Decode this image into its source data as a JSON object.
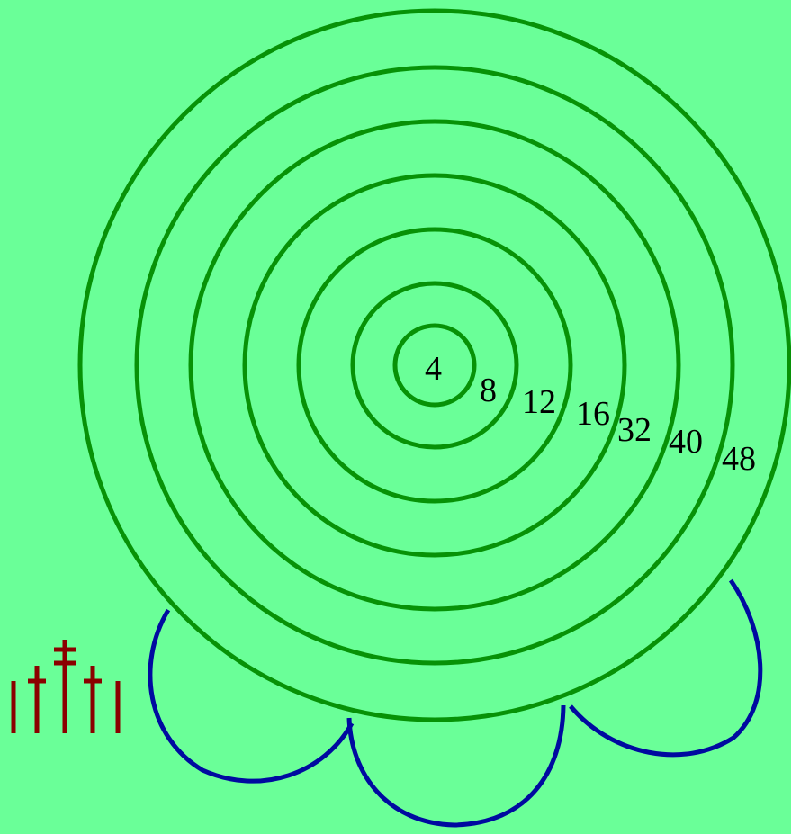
{
  "colors": {
    "background": "#6aff98",
    "rings": "#079207",
    "arcs": "#000aa0",
    "ticks": "#8b0000",
    "labels": "#000000"
  },
  "rings": [
    {
      "label": "4"
    },
    {
      "label": "8"
    },
    {
      "label": "12"
    },
    {
      "label": "16"
    },
    {
      "label": "32"
    },
    {
      "label": "40"
    },
    {
      "label": "48"
    }
  ],
  "decorations": {
    "scallop_arcs": 4,
    "tick_mark_icon": "crosses-icon"
  }
}
